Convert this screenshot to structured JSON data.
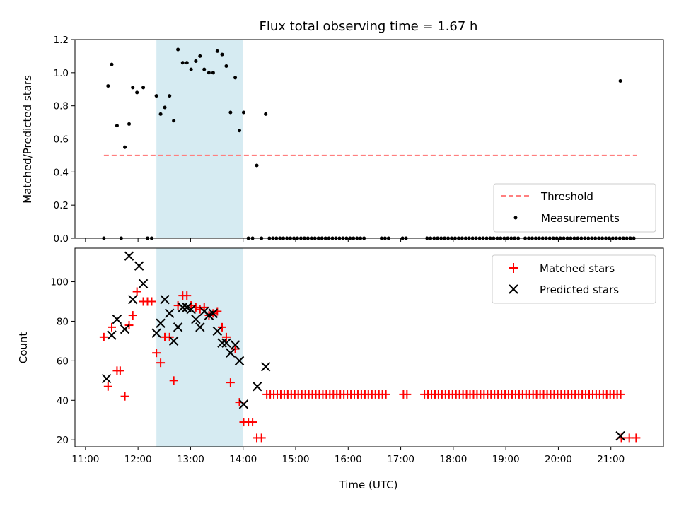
{
  "title": "Flux total observing time = 1.67 h",
  "chart_data": [
    {
      "type": "scatter",
      "ylabel": "Matched/Predicted stars",
      "ylim": [
        0,
        1.2
      ],
      "yticks": [
        0.0,
        0.2,
        0.4,
        0.6,
        0.8,
        1.0,
        1.2
      ],
      "ytick_labels": [
        "0.0",
        "0.2",
        "0.4",
        "0.6",
        "0.8",
        "1.0",
        "1.2"
      ],
      "xlim_hours": [
        10.8,
        22.0
      ],
      "shaded_span_hours": [
        12.35,
        14.0
      ],
      "shaded_color": "#add8e6",
      "legend": {
        "position": "lower right",
        "entries": [
          "Threshold",
          "Measurements"
        ]
      },
      "threshold": {
        "name": "Threshold",
        "color": "#ff7f7f",
        "style": "dashed",
        "x": [
          11.35,
          21.5
        ],
        "y": 0.5
      },
      "measurements": {
        "name": "Measurements",
        "color": "#000000",
        "x": [
          11.35,
          11.43,
          11.5,
          11.6,
          11.68,
          11.75,
          11.83,
          11.9,
          11.98,
          12.1,
          12.18,
          12.26,
          12.35,
          12.43,
          12.51,
          12.6,
          12.68,
          12.76,
          12.85,
          12.93,
          13.01,
          13.1,
          13.18,
          13.26,
          13.35,
          13.43,
          13.51,
          13.6,
          13.68,
          13.76,
          13.85,
          13.93,
          14.01,
          14.1,
          14.18,
          14.26,
          14.35,
          14.43,
          21.18
        ],
        "y": [
          0.0,
          0.92,
          1.05,
          0.68,
          0.0,
          0.55,
          0.69,
          0.91,
          0.88,
          0.91,
          0.0,
          0.0,
          0.86,
          0.75,
          0.79,
          0.86,
          0.71,
          1.14,
          1.06,
          1.06,
          1.02,
          1.07,
          1.1,
          1.02,
          1.0,
          1.0,
          1.13,
          1.11,
          1.04,
          0.76,
          0.97,
          0.65,
          0.76,
          0.0,
          0.0,
          0.44,
          0.0,
          0.75,
          0.95
        ]
      },
      "zero_measurements": {
        "x_start": 14.5,
        "x_end": 21.48,
        "step": 0.0667,
        "y": 0.0,
        "gaps": [
          [
            16.35,
            16.6
          ],
          [
            16.78,
            17.0
          ],
          [
            17.15,
            17.45
          ],
          [
            19.25,
            19.35
          ]
        ]
      }
    },
    {
      "type": "scatter",
      "xlabel": "Time (UTC)",
      "ylabel": "Count",
      "ylim": [
        16.5,
        117
      ],
      "yticks": [
        20,
        40,
        60,
        80,
        100
      ],
      "ytick_labels": [
        "20",
        "40",
        "60",
        "80",
        "100"
      ],
      "xlim_hours": [
        10.8,
        22.0
      ],
      "xticks_hours": [
        11,
        12,
        13,
        14,
        15,
        16,
        17,
        18,
        19,
        20,
        21
      ],
      "xtick_labels": [
        "11:00",
        "12:00",
        "13:00",
        "14:00",
        "15:00",
        "16:00",
        "17:00",
        "18:00",
        "19:00",
        "20:00",
        "21:00"
      ],
      "shaded_span_hours": [
        12.35,
        14.0
      ],
      "shaded_color": "#add8e6",
      "legend": {
        "position": "upper right",
        "entries": [
          "Matched stars",
          "Predicted stars"
        ]
      },
      "series": [
        {
          "name": "Matched stars",
          "marker": "+",
          "color": "#ff0000",
          "x": [
            11.35,
            11.43,
            11.5,
            11.6,
            11.66,
            11.75,
            11.83,
            11.9,
            11.98,
            12.1,
            12.18,
            12.26,
            12.35,
            12.43,
            12.51,
            12.6,
            12.68,
            12.76,
            12.85,
            12.93,
            13.01,
            13.1,
            13.18,
            13.26,
            13.35,
            13.43,
            13.51,
            13.6,
            13.68,
            13.76,
            13.85,
            13.93,
            14.01,
            14.1,
            14.18,
            14.26,
            14.35,
            21.2,
            21.35,
            21.48
          ],
          "y": [
            72,
            47,
            77,
            55,
            55,
            42,
            78,
            83,
            95,
            90,
            90,
            90,
            64,
            59,
            72,
            72,
            50,
            88,
            93,
            93,
            88,
            87,
            86,
            87,
            83,
            84,
            85,
            77,
            72,
            49,
            66,
            39,
            29,
            29,
            29,
            21,
            21,
            21,
            21,
            21
          ]
        },
        {
          "name": "Predicted stars",
          "marker": "x",
          "color": "#000000",
          "x": [
            11.4,
            11.5,
            11.6,
            11.75,
            11.83,
            11.9,
            12.02,
            12.1,
            12.35,
            12.43,
            12.51,
            12.6,
            12.68,
            12.76,
            12.85,
            12.93,
            13.01,
            13.1,
            13.18,
            13.26,
            13.35,
            13.43,
            13.51,
            13.6,
            13.68,
            13.76,
            13.85,
            13.93,
            14.01,
            14.27,
            14.43,
            21.18
          ],
          "y": [
            51,
            73,
            81,
            76,
            113,
            91,
            108,
            99,
            74,
            79,
            91,
            84,
            70,
            77,
            87,
            87,
            86,
            81,
            77,
            85,
            83,
            84,
            75,
            69,
            69,
            64,
            68,
            60,
            38,
            47,
            57,
            22
          ]
        }
      ],
      "constant_matched": {
        "x_start": 14.45,
        "x_end": 21.2,
        "step": 0.0667,
        "y": 43,
        "gaps": [
          [
            16.78,
            17.0
          ],
          [
            17.15,
            17.45
          ]
        ]
      }
    }
  ]
}
